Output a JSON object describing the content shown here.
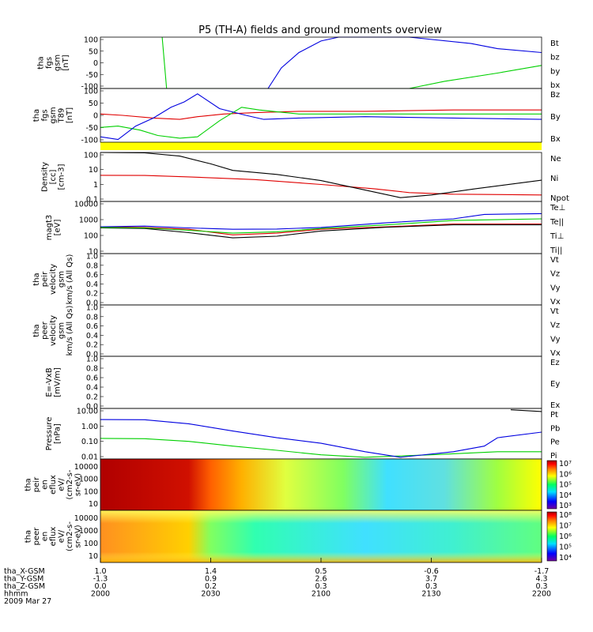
{
  "title": "P5 (TH-A) fields and ground moments overview",
  "colors": {
    "black": "#000000",
    "red": "#e00000",
    "green": "#00d000",
    "blue": "#0000e0",
    "yellow": "#ffff00"
  },
  "chart_data": [
    {
      "id": "fgs",
      "type": "line",
      "ylabel": [
        "tha",
        "fgs",
        "gsm",
        "[nT]"
      ],
      "yticks": [
        "100",
        "50",
        "0",
        "-50",
        "-100"
      ],
      "ylim": [
        -100,
        100
      ],
      "series": [
        {
          "name": "Bt",
          "color": "black",
          "x": [],
          "y": []
        },
        {
          "name": "bz",
          "color": "red",
          "x": [],
          "y": []
        },
        {
          "name": "by",
          "color": "green",
          "x": [
            0.14,
            0.15,
            0.7,
            0.78,
            0.9,
            1.0
          ],
          "y": [
            100,
            -100,
            -100,
            -72,
            -40,
            -10
          ]
        },
        {
          "name": "bx",
          "color": "blue",
          "x": [
            0.38,
            0.41,
            0.45,
            0.5,
            0.54,
            0.7,
            0.84,
            0.9,
            1.0
          ],
          "y": [
            -100,
            -20,
            40,
            85,
            100,
            100,
            75,
            55,
            40
          ]
        }
      ]
    },
    {
      "id": "fgs_mag",
      "type": "line",
      "ylabel": [
        "tha",
        "fgs",
        "gsm",
        "T89",
        "[nT]"
      ],
      "yticks": [
        "100",
        "50",
        "0",
        "-50",
        "-100"
      ],
      "ylim": [
        -100,
        100
      ],
      "series": [
        {
          "name": "Bz",
          "color": "red",
          "x": [
            0.0,
            0.05,
            0.12,
            0.18,
            0.22,
            0.28,
            0.35,
            0.45,
            0.6,
            0.8,
            1.0
          ],
          "y": [
            5,
            0,
            -10,
            -15,
            -5,
            5,
            10,
            15,
            15,
            20,
            20
          ]
        },
        {
          "name": "By",
          "color": "green",
          "x": [
            0.0,
            0.04,
            0.09,
            0.13,
            0.18,
            0.22,
            0.27,
            0.32,
            0.36,
            0.45,
            0.6,
            0.8,
            1.0
          ],
          "y": [
            -45,
            -40,
            -55,
            -75,
            -85,
            -80,
            -20,
            30,
            20,
            5,
            5,
            5,
            5
          ]
        },
        {
          "name": "Bx",
          "color": "blue",
          "x": [
            0.0,
            0.04,
            0.08,
            0.12,
            0.16,
            0.19,
            0.22,
            0.27,
            0.33,
            0.37,
            0.45,
            0.6,
            0.8,
            1.0
          ],
          "y": [
            -80,
            -90,
            -40,
            -10,
            30,
            50,
            80,
            25,
            0,
            -15,
            -10,
            -5,
            -10,
            -15
          ]
        }
      ]
    },
    {
      "id": "density",
      "type": "line",
      "scale": "log",
      "ylabel": [
        "Density",
        "[cc]",
        "[cm-3]"
      ],
      "yticks": [
        "100",
        "10",
        "1",
        "0.1"
      ],
      "ylim": [
        0.1,
        100
      ],
      "series": [
        {
          "name": "Ne",
          "color": "red",
          "x": [
            0.0,
            0.1,
            0.2,
            0.35,
            0.5,
            0.62,
            0.7,
            0.8,
            1.0
          ],
          "y": [
            4,
            3.9,
            3.2,
            2.2,
            1.1,
            0.6,
            0.35,
            0.28,
            0.25
          ]
        },
        {
          "name": "Ni",
          "color": "black",
          "x": [
            0.0,
            0.1,
            0.18,
            0.25,
            0.3,
            0.4,
            0.5,
            0.6,
            0.68,
            0.75,
            0.85,
            1.0
          ],
          "y": [
            100,
            95,
            60,
            20,
            8,
            4.5,
            1.9,
            0.5,
            0.17,
            0.25,
            0.6,
            2
          ]
        },
        {
          "name": "Npot",
          "color": "blue",
          "x": [],
          "y": []
        }
      ]
    },
    {
      "id": "temp",
      "type": "line",
      "scale": "log",
      "ylabel": [
        "magt3",
        "[eV]"
      ],
      "yticks": [
        "10000",
        "1000",
        "100",
        "10"
      ],
      "ylim": [
        10,
        10000
      ],
      "series": [
        {
          "name": "Te⊥",
          "color": "red",
          "x": [
            0.0,
            0.1,
            0.2,
            0.3,
            0.4,
            0.5,
            0.65,
            0.8,
            1.0
          ],
          "y": [
            350,
            320,
            250,
            120,
            150,
            250,
            350,
            500,
            500
          ]
        },
        {
          "name": "Te||",
          "color": "black",
          "x": [
            0.0,
            0.1,
            0.2,
            0.3,
            0.4,
            0.5,
            0.65,
            0.8,
            1.0
          ],
          "y": [
            300,
            280,
            160,
            80,
            100,
            200,
            330,
            450,
            450
          ]
        },
        {
          "name": "Ti⊥",
          "color": "blue",
          "x": [
            0.0,
            0.1,
            0.2,
            0.3,
            0.4,
            0.5,
            0.65,
            0.8,
            0.87,
            1.0
          ],
          "y": [
            350,
            380,
            300,
            250,
            260,
            320,
            600,
            1000,
            1800,
            2000
          ]
        },
        {
          "name": "Ti||",
          "color": "green",
          "x": [
            0.0,
            0.1,
            0.2,
            0.3,
            0.4,
            0.5,
            0.65,
            0.8,
            1.0
          ],
          "y": [
            320,
            300,
            220,
            150,
            180,
            280,
            450,
            800,
            1000
          ]
        }
      ]
    },
    {
      "id": "peir_vel",
      "type": "line",
      "ylabel": [
        "tha",
        "peir",
        "velocity",
        "gsm",
        "km/s (All Qs)"
      ],
      "yticks": [
        "1.0",
        "0.8",
        "0.6",
        "0.4",
        "0.2",
        "0.0"
      ],
      "ylim": [
        0,
        1
      ],
      "series": [
        {
          "name": "Vt",
          "color": "black"
        },
        {
          "name": "Vz",
          "color": "red"
        },
        {
          "name": "Vy",
          "color": "green"
        },
        {
          "name": "Vx",
          "color": "blue"
        }
      ]
    },
    {
      "id": "peer_vel",
      "type": "line",
      "ylabel": [
        "tha",
        "peer",
        "velocity",
        "gsm",
        "km/s (All Qs)"
      ],
      "yticks": [
        "1.0",
        "0.8",
        "0.6",
        "0.4",
        "0.2",
        "0.0"
      ],
      "ylim": [
        0,
        1
      ],
      "series": [
        {
          "name": "Vt",
          "color": "black"
        },
        {
          "name": "Vz",
          "color": "red"
        },
        {
          "name": "Vy",
          "color": "green"
        },
        {
          "name": "Vx",
          "color": "blue"
        }
      ]
    },
    {
      "id": "efield",
      "type": "line",
      "ylabel": [
        "E=-VxB",
        "[mV/m]"
      ],
      "yticks": [
        "1.0",
        "0.8",
        "0.6",
        "0.4",
        "0.2",
        "0.0"
      ],
      "ylim": [
        0,
        1
      ],
      "series": [
        {
          "name": "Ez",
          "color": "red"
        },
        {
          "name": "Ey",
          "color": "green"
        },
        {
          "name": "Ex",
          "color": "blue"
        }
      ]
    },
    {
      "id": "pressure",
      "type": "line",
      "scale": "log",
      "ylabel": [
        "Pressure",
        "[nPa]"
      ],
      "yticks": [
        "10.00",
        "1.00",
        "0.10",
        "0.01"
      ],
      "ylim": [
        0.006,
        25
      ],
      "series": [
        {
          "name": "Pt",
          "color": "black",
          "x": [
            0.93,
            1.0
          ],
          "y": [
            20,
            15
          ]
        },
        {
          "name": "Pb",
          "color": "red",
          "x": [],
          "y": []
        },
        {
          "name": "Pe",
          "color": "green",
          "x": [
            0.0,
            0.1,
            0.2,
            0.3,
            0.4,
            0.5,
            0.6,
            0.75,
            0.9,
            1.0
          ],
          "y": [
            0.18,
            0.17,
            0.11,
            0.05,
            0.025,
            0.012,
            0.008,
            0.012,
            0.02,
            0.02
          ]
        },
        {
          "name": "Pi",
          "color": "blue",
          "x": [
            0.0,
            0.1,
            0.2,
            0.3,
            0.4,
            0.5,
            0.6,
            0.68,
            0.8,
            0.87,
            0.9,
            1.0
          ],
          "y": [
            4,
            3.9,
            2.0,
            0.6,
            0.2,
            0.08,
            0.02,
            0.008,
            0.02,
            0.05,
            0.2,
            0.5
          ]
        }
      ]
    },
    {
      "id": "peir_spec",
      "type": "heatmap",
      "ylabel": [
        "tha",
        "peir",
        "en",
        "eflux",
        "eV/",
        "(cm2-s-",
        "sr-eV)"
      ],
      "yticks": [
        "10000",
        "1000",
        "100",
        "10"
      ],
      "colorbar": [
        "10⁷",
        "10⁶",
        "10⁵",
        "10⁴",
        "10³"
      ]
    },
    {
      "id": "peer_spec",
      "type": "heatmap",
      "ylabel": [
        "tha",
        "peer",
        "en",
        "eflux",
        "eV/",
        "(cm2-s-",
        "sr-eV)"
      ],
      "yticks": [
        "10000",
        "1000",
        "100",
        "10"
      ],
      "colorbar": [
        "10⁸",
        "10⁷",
        "10⁶",
        "10⁵",
        "10⁴"
      ]
    }
  ],
  "xaxis": {
    "rows": [
      {
        "label": "tha_X-GSM",
        "values": [
          "1.0",
          "1.4",
          "0.5",
          "-0.6",
          "-1.7"
        ]
      },
      {
        "label": "tha_Y-GSM",
        "values": [
          "-1.3",
          "0.9",
          "2.6",
          "3.7",
          "4.3"
        ]
      },
      {
        "label": "tha_Z-GSM",
        "values": [
          "0.0",
          "0.2",
          "0.3",
          "0.3",
          "0.3"
        ]
      },
      {
        "label": "hhmm",
        "values": [
          "2000",
          "2030",
          "2100",
          "2130",
          "2200"
        ]
      }
    ],
    "date": "2009 Mar 27"
  }
}
